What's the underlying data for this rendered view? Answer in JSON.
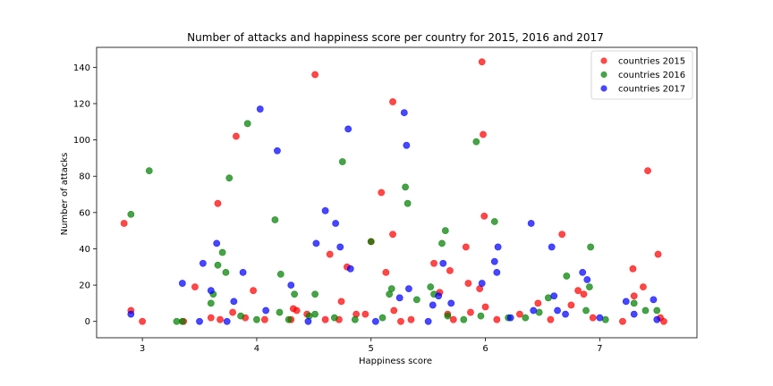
{
  "chart_data": {
    "type": "scatter",
    "title": "Number of attacks and happiness score per country for 2015, 2016 and 2017",
    "xlabel": "Happiness score",
    "ylabel": "Number of attacks",
    "xlim": [
      2.6,
      7.85
    ],
    "ylim": [
      -9,
      151
    ],
    "xticks": [
      3,
      4,
      5,
      6,
      7
    ],
    "yticks": [
      0,
      20,
      40,
      60,
      80,
      100,
      120,
      140
    ],
    "grid": false,
    "legend_position": "top-right",
    "series": [
      {
        "name": "countries 2015",
        "color": "#ff0000",
        "points": [
          {
            "x": 2.84,
            "y": 54
          },
          {
            "x": 2.9,
            "y": 6
          },
          {
            "x": 3.0,
            "y": 0
          },
          {
            "x": 3.36,
            "y": 0
          },
          {
            "x": 3.46,
            "y": 19
          },
          {
            "x": 3.6,
            "y": 2
          },
          {
            "x": 3.66,
            "y": 65
          },
          {
            "x": 3.68,
            "y": 1
          },
          {
            "x": 3.79,
            "y": 5
          },
          {
            "x": 3.82,
            "y": 102
          },
          {
            "x": 3.9,
            "y": 2
          },
          {
            "x": 3.97,
            "y": 17
          },
          {
            "x": 4.07,
            "y": 1
          },
          {
            "x": 4.3,
            "y": 1
          },
          {
            "x": 4.32,
            "y": 7
          },
          {
            "x": 4.35,
            "y": 6
          },
          {
            "x": 4.44,
            "y": 4
          },
          {
            "x": 4.51,
            "y": 136
          },
          {
            "x": 4.6,
            "y": 1
          },
          {
            "x": 4.64,
            "y": 37
          },
          {
            "x": 4.72,
            "y": 1
          },
          {
            "x": 4.74,
            "y": 11
          },
          {
            "x": 4.79,
            "y": 30
          },
          {
            "x": 4.87,
            "y": 4
          },
          {
            "x": 4.95,
            "y": 4
          },
          {
            "x": 5.0,
            "y": 44
          },
          {
            "x": 5.09,
            "y": 71
          },
          {
            "x": 5.13,
            "y": 27
          },
          {
            "x": 5.19,
            "y": 121
          },
          {
            "x": 5.19,
            "y": 48
          },
          {
            "x": 5.2,
            "y": 6
          },
          {
            "x": 5.26,
            "y": 0
          },
          {
            "x": 5.35,
            "y": 1
          },
          {
            "x": 5.55,
            "y": 32
          },
          {
            "x": 5.6,
            "y": 16
          },
          {
            "x": 5.67,
            "y": 4
          },
          {
            "x": 5.69,
            "y": 28
          },
          {
            "x": 5.72,
            "y": 1
          },
          {
            "x": 5.83,
            "y": 41
          },
          {
            "x": 5.85,
            "y": 21
          },
          {
            "x": 5.87,
            "y": 5
          },
          {
            "x": 5.95,
            "y": 18
          },
          {
            "x": 5.97,
            "y": 143
          },
          {
            "x": 5.98,
            "y": 103
          },
          {
            "x": 5.99,
            "y": 58
          },
          {
            "x": 6.0,
            "y": 8
          },
          {
            "x": 6.1,
            "y": 1
          },
          {
            "x": 6.3,
            "y": 4
          },
          {
            "x": 6.46,
            "y": 10
          },
          {
            "x": 6.57,
            "y": 1
          },
          {
            "x": 6.67,
            "y": 48
          },
          {
            "x": 6.75,
            "y": 9
          },
          {
            "x": 6.81,
            "y": 17
          },
          {
            "x": 6.86,
            "y": 15
          },
          {
            "x": 6.94,
            "y": 2
          },
          {
            "x": 7.2,
            "y": 0
          },
          {
            "x": 7.29,
            "y": 29
          },
          {
            "x": 7.3,
            "y": 14
          },
          {
            "x": 7.38,
            "y": 19
          },
          {
            "x": 7.42,
            "y": 83
          },
          {
            "x": 7.51,
            "y": 37
          },
          {
            "x": 7.53,
            "y": 2
          },
          {
            "x": 7.56,
            "y": 0
          }
        ]
      },
      {
        "name": "countries 2016",
        "color": "#008000",
        "points": [
          {
            "x": 2.9,
            "y": 59
          },
          {
            "x": 3.06,
            "y": 83
          },
          {
            "x": 3.3,
            "y": 0
          },
          {
            "x": 3.35,
            "y": 0
          },
          {
            "x": 3.6,
            "y": 10
          },
          {
            "x": 3.62,
            "y": 15
          },
          {
            "x": 3.66,
            "y": 31
          },
          {
            "x": 3.7,
            "y": 38
          },
          {
            "x": 3.73,
            "y": 27
          },
          {
            "x": 3.76,
            "y": 79
          },
          {
            "x": 3.86,
            "y": 3
          },
          {
            "x": 3.92,
            "y": 109
          },
          {
            "x": 4.0,
            "y": 1
          },
          {
            "x": 4.16,
            "y": 56
          },
          {
            "x": 4.2,
            "y": 5
          },
          {
            "x": 4.21,
            "y": 26
          },
          {
            "x": 4.28,
            "y": 1
          },
          {
            "x": 4.33,
            "y": 15
          },
          {
            "x": 4.46,
            "y": 3
          },
          {
            "x": 4.51,
            "y": 15
          },
          {
            "x": 4.51,
            "y": 4
          },
          {
            "x": 4.68,
            "y": 2
          },
          {
            "x": 4.75,
            "y": 88
          },
          {
            "x": 4.86,
            "y": 1
          },
          {
            "x": 5.0,
            "y": 44
          },
          {
            "x": 5.1,
            "y": 2
          },
          {
            "x": 5.16,
            "y": 15
          },
          {
            "x": 5.18,
            "y": 18
          },
          {
            "x": 5.3,
            "y": 74
          },
          {
            "x": 5.32,
            "y": 65
          },
          {
            "x": 5.4,
            "y": 12
          },
          {
            "x": 5.52,
            "y": 19
          },
          {
            "x": 5.55,
            "y": 15
          },
          {
            "x": 5.62,
            "y": 43
          },
          {
            "x": 5.65,
            "y": 50
          },
          {
            "x": 5.67,
            "y": 3
          },
          {
            "x": 5.81,
            "y": 1
          },
          {
            "x": 5.92,
            "y": 99
          },
          {
            "x": 5.96,
            "y": 3
          },
          {
            "x": 6.08,
            "y": 55
          },
          {
            "x": 6.2,
            "y": 2
          },
          {
            "x": 6.35,
            "y": 2
          },
          {
            "x": 6.47,
            "y": 5
          },
          {
            "x": 6.55,
            "y": 13
          },
          {
            "x": 6.71,
            "y": 25
          },
          {
            "x": 6.88,
            "y": 6
          },
          {
            "x": 6.91,
            "y": 19
          },
          {
            "x": 6.92,
            "y": 41
          },
          {
            "x": 7.05,
            "y": 1
          },
          {
            "x": 7.3,
            "y": 10
          },
          {
            "x": 7.4,
            "y": 6
          },
          {
            "x": 7.5,
            "y": 6
          }
        ]
      },
      {
        "name": "countries 2017",
        "color": "#0000ff",
        "points": [
          {
            "x": 2.9,
            "y": 4
          },
          {
            "x": 3.35,
            "y": 21
          },
          {
            "x": 3.5,
            "y": 0
          },
          {
            "x": 3.53,
            "y": 32
          },
          {
            "x": 3.6,
            "y": 17
          },
          {
            "x": 3.65,
            "y": 43
          },
          {
            "x": 3.74,
            "y": 0
          },
          {
            "x": 3.8,
            "y": 11
          },
          {
            "x": 3.88,
            "y": 27
          },
          {
            "x": 4.03,
            "y": 117
          },
          {
            "x": 4.08,
            "y": 6
          },
          {
            "x": 4.18,
            "y": 94
          },
          {
            "x": 4.3,
            "y": 20
          },
          {
            "x": 4.45,
            "y": 0
          },
          {
            "x": 4.52,
            "y": 43
          },
          {
            "x": 4.6,
            "y": 61
          },
          {
            "x": 4.69,
            "y": 54
          },
          {
            "x": 4.73,
            "y": 41
          },
          {
            "x": 4.8,
            "y": 106
          },
          {
            "x": 4.82,
            "y": 29
          },
          {
            "x": 5.04,
            "y": 0
          },
          {
            "x": 5.25,
            "y": 13
          },
          {
            "x": 5.29,
            "y": 115
          },
          {
            "x": 5.31,
            "y": 97
          },
          {
            "x": 5.33,
            "y": 18
          },
          {
            "x": 5.5,
            "y": 0
          },
          {
            "x": 5.54,
            "y": 9
          },
          {
            "x": 5.59,
            "y": 14
          },
          {
            "x": 5.63,
            "y": 32
          },
          {
            "x": 5.7,
            "y": 10
          },
          {
            "x": 5.97,
            "y": 21
          },
          {
            "x": 6.08,
            "y": 33
          },
          {
            "x": 6.1,
            "y": 27
          },
          {
            "x": 6.11,
            "y": 41
          },
          {
            "x": 6.22,
            "y": 2
          },
          {
            "x": 6.4,
            "y": 54
          },
          {
            "x": 6.42,
            "y": 6
          },
          {
            "x": 6.58,
            "y": 41
          },
          {
            "x": 6.6,
            "y": 14
          },
          {
            "x": 6.63,
            "y": 6
          },
          {
            "x": 6.7,
            "y": 4
          },
          {
            "x": 6.85,
            "y": 27
          },
          {
            "x": 6.89,
            "y": 23
          },
          {
            "x": 7.0,
            "y": 2
          },
          {
            "x": 7.23,
            "y": 11
          },
          {
            "x": 7.3,
            "y": 4
          },
          {
            "x": 7.47,
            "y": 12
          },
          {
            "x": 7.5,
            "y": 1
          }
        ]
      }
    ]
  }
}
